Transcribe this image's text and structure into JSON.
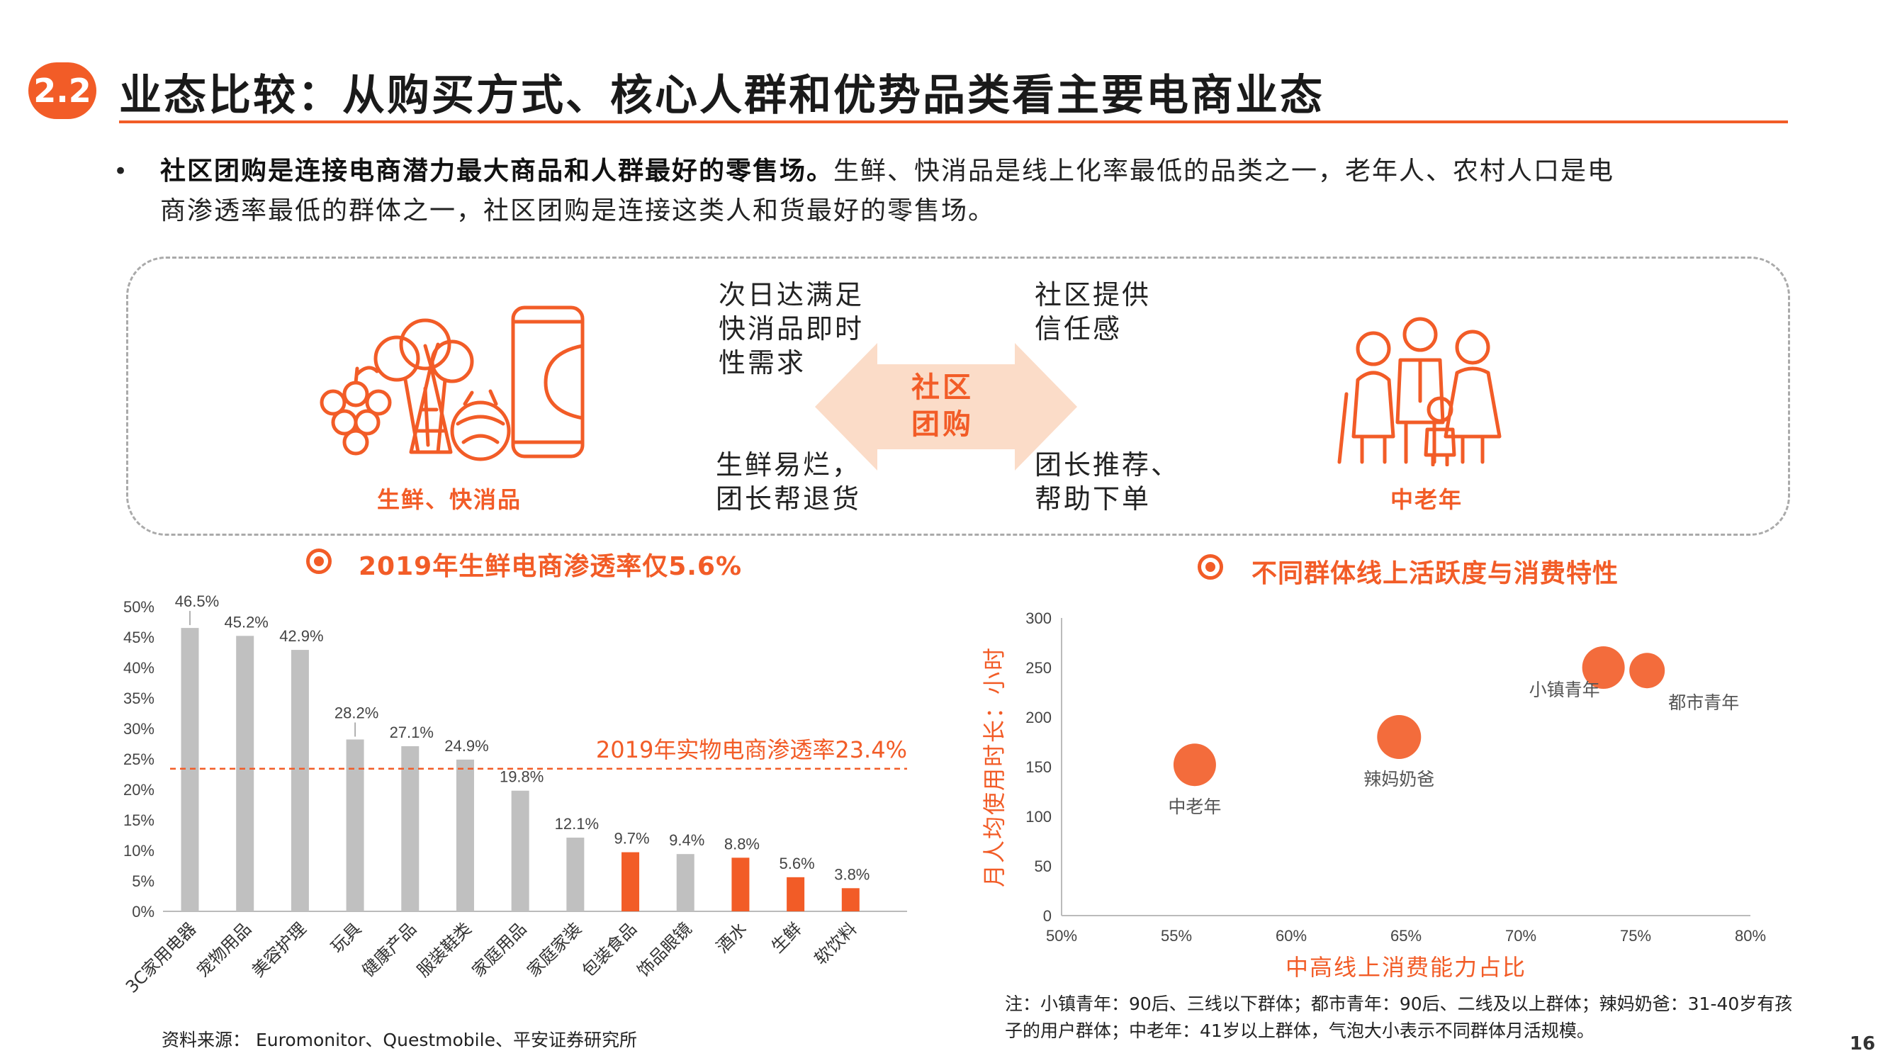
{
  "header": {
    "section_number": "2.2",
    "title": "业态比较：从购买方式、核心人群和优势品类看主要电商业态"
  },
  "bullet": {
    "bold_text": "社区团购是连接电商潜力最大商品和人群最好的零售场。",
    "text_line1": "生鲜、快消品是线上化率最低的品类之一，老年人、农村人口是电",
    "text_line2": "商渗透率最低的群体之一，社区团购是连接这类人和货最好的零售场。"
  },
  "panel": {
    "left_label": "生鲜、快消品",
    "right_label": "中老年",
    "center_line1": "社区",
    "center_line2": "团购",
    "top_left": [
      "次日达满足",
      "快消品即时",
      "性需求"
    ],
    "bottom_left": [
      "生鲜易烂，",
      "团长帮退货"
    ],
    "top_right": [
      "社区提供",
      "信任感"
    ],
    "bottom_right": [
      "团长推荐、",
      "帮助下单"
    ]
  },
  "bar_section_title": "2019年生鲜电商渗透率仅5.6%",
  "scatter_section_title": "不同群体线上活跃度与消费特性",
  "colors": {
    "accent": "#f25c27",
    "gray_bar": "#c0c0c0",
    "icon_line": "#f25c27"
  },
  "icons": {
    "produce": "produce-icon",
    "family": "family-icon",
    "arrows": "double-arrow-icon"
  },
  "chart_data": [
    {
      "type": "bar",
      "categories": [
        "3C家用电器",
        "宠物用品",
        "美容护理",
        "玩具",
        "健康产品",
        "服装鞋类",
        "家庭用品",
        "家庭家装",
        "包装食品",
        "饰品眼镜",
        "酒水",
        "生鲜",
        "软饮料"
      ],
      "values": [
        46.5,
        45.2,
        42.9,
        28.2,
        27.1,
        24.9,
        19.8,
        12.1,
        9.7,
        9.4,
        8.8,
        5.6,
        3.8
      ],
      "value_labels": [
        "46.5%",
        "45.2%",
        "42.9%",
        "28.2%",
        "27.1%",
        "24.9%",
        "19.8%",
        "12.1%",
        "9.7%",
        "9.4%",
        "8.8%",
        "5.6%",
        "3.8%"
      ],
      "highlight": [
        false,
        false,
        false,
        false,
        false,
        false,
        false,
        false,
        true,
        false,
        true,
        true,
        true
      ],
      "yticks": [
        "0%",
        "5%",
        "10%",
        "15%",
        "20%",
        "25%",
        "30%",
        "35%",
        "40%",
        "45%",
        "50%"
      ],
      "ylim": [
        0,
        50
      ],
      "reference_line": {
        "value": 23.4,
        "label": "2019年实物电商渗透率23.4%"
      }
    },
    {
      "type": "scatter",
      "xlabel": "中高线上消费能力占比",
      "ylabel": "月人均使用时长：小时",
      "xticks": [
        "50%",
        "55%",
        "60%",
        "65%",
        "70%",
        "75%",
        "80%"
      ],
      "yticks": [
        "0",
        "50",
        "100",
        "150",
        "200",
        "250",
        "300"
      ],
      "xlim": [
        50,
        80
      ],
      "ylim": [
        0,
        300
      ],
      "points": [
        {
          "name": "中老年",
          "x": 55.8,
          "y": 152
        },
        {
          "name": "辣妈奶爸",
          "x": 64.7,
          "y": 180
        },
        {
          "name": "小镇青年",
          "x": 73.6,
          "y": 250
        },
        {
          "name": "都市青年",
          "x": 75.5,
          "y": 247
        }
      ]
    }
  ],
  "note": "注：小镇青年：90后、三线以下群体；都市青年：90后、二线及以上群体；辣妈奶爸：31-40岁有孩子的用户群体；中老年：41岁以上群体，气泡大小表示不同群体月活规模。",
  "source": "资料来源： Euromonitor、Questmobile、平安证券研究所",
  "page_number": "16"
}
